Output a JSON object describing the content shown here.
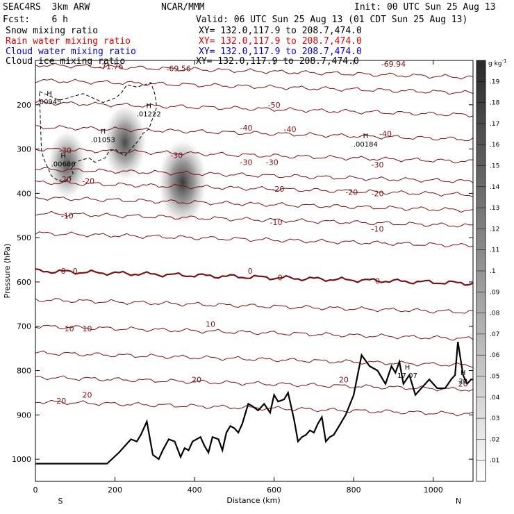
{
  "header": {
    "model": "SEAC4RS  3km ARW",
    "center": "NCAR/MMM",
    "init": "Init: 00 UTC Sun 25 Aug 13",
    "fcst": "Fcst:    6 h",
    "valid": "Valid: 06 UTC Sun 25 Aug 13 (01 CDT Sun 25 Aug 13)",
    "fields": [
      {
        "label": "Snow mixing ratio",
        "xy": "XY= 132.0,117.9 to 208.7,474.0",
        "color": "#000000"
      },
      {
        "label": "Rain water mixing ratio",
        "xy": "XY= 132.0,117.9 to 208.7,474.0",
        "color": "#e00000"
      },
      {
        "label": "Cloud water mixing ratio",
        "xy": "XY= 132.0,117.9 to 208.7,474.0",
        "color": "#0000cc"
      },
      {
        "label": "Cloud ice mixing ratio",
        "xy": "XY= 132.0,117.9 to 208.7,474.0",
        "color": "#000000"
      }
    ]
  },
  "colors": {
    "temperature": "#7a1010",
    "terrain": "#000000",
    "cloud_ice": "#000000"
  },
  "chart_data": {
    "type": "heatmap",
    "xlabel": "Distance (km)",
    "ylabel": "Pressure (hPa)",
    "xlim": [
      0,
      1100
    ],
    "ylim": [
      1050,
      100
    ],
    "x_ticks": [
      0,
      200,
      400,
      600,
      800,
      1000
    ],
    "x_tick_labels": [
      "0",
      "200",
      "400",
      "600",
      "800",
      "1000"
    ],
    "y_ticks": [
      200,
      300,
      400,
      500,
      600,
      700,
      800,
      900,
      1000
    ],
    "y_tick_labels": [
      "200",
      "300",
      "400",
      "500",
      "600",
      "700",
      "800",
      "900",
      "1000"
    ],
    "x_end_labels": [
      "S",
      "N"
    ],
    "colorbar": {
      "unit_label": "g kg",
      "unit_exponent": "-1",
      "tick_labels": [
        ".01",
        ".02",
        ".03",
        ".04",
        ".05",
        ".06",
        ".07",
        ".08",
        ".09",
        ".1",
        ".11",
        ".12",
        ".13",
        ".14",
        ".15",
        ".16",
        ".17",
        ".18",
        ".19"
      ]
    },
    "snow_maxima": [
      {
        "x": 370,
        "p": 375,
        "value": 0.19
      },
      {
        "x": 225,
        "p": 285,
        "value": 0.15
      },
      {
        "x": 80,
        "p": 335,
        "value": 0.12
      }
    ],
    "temperature_levels": [
      {
        "p": 110,
        "t": -71.76
      },
      {
        "p": 145,
        "t": -60
      },
      {
        "p": 195,
        "t": -50
      },
      {
        "p": 250,
        "t": -40
      },
      {
        "p": 300,
        "t": -30
      },
      {
        "p": 345,
        "t": -25
      },
      {
        "p": 375,
        "t": -20
      },
      {
        "p": 410,
        "t": -15
      },
      {
        "p": 445,
        "t": -10
      },
      {
        "p": 490,
        "t": -5
      },
      {
        "p": 575,
        "t": 0
      },
      {
        "p": 640,
        "t": 5
      },
      {
        "p": 700,
        "t": 10
      },
      {
        "p": 760,
        "t": 15
      },
      {
        "p": 815,
        "t": 20
      },
      {
        "p": 870,
        "t": 20
      }
    ],
    "contour_labels": [
      {
        "text": "-71.76",
        "x": 190,
        "p": 113
      },
      {
        "text": "-69.56",
        "x": 360,
        "p": 118
      },
      {
        "text": "-69.94",
        "x": 900,
        "p": 108
      },
      {
        "text": "-50",
        "x": 600,
        "p": 200
      },
      {
        "text": "-40",
        "x": 530,
        "p": 252
      },
      {
        "text": "-40",
        "x": 640,
        "p": 255
      },
      {
        "text": "-40",
        "x": 880,
        "p": 265
      },
      {
        "text": "-30",
        "x": 75,
        "p": 303
      },
      {
        "text": "-30",
        "x": 355,
        "p": 314
      },
      {
        "text": "-30",
        "x": 530,
        "p": 330
      },
      {
        "text": "-30",
        "x": 595,
        "p": 330
      },
      {
        "text": "-30",
        "x": 860,
        "p": 335
      },
      {
        "text": "-20",
        "x": 75,
        "p": 368
      },
      {
        "text": "-20",
        "x": 133,
        "p": 372
      },
      {
        "text": "-20",
        "x": 610,
        "p": 390
      },
      {
        "text": "-20",
        "x": 795,
        "p": 397
      },
      {
        "text": "-20",
        "x": 860,
        "p": 400
      },
      {
        "text": "-10",
        "x": 80,
        "p": 450
      },
      {
        "text": "-10",
        "x": 605,
        "p": 465
      },
      {
        "text": "-10",
        "x": 860,
        "p": 480
      },
      {
        "text": "0",
        "x": 70,
        "p": 575
      },
      {
        "text": "0",
        "x": 100,
        "p": 575
      },
      {
        "text": "0",
        "x": 540,
        "p": 575
      },
      {
        "text": "0",
        "x": 615,
        "p": 590
      },
      {
        "text": "0",
        "x": 860,
        "p": 598
      },
      {
        "text": "10",
        "x": 85,
        "p": 705
      },
      {
        "text": "10",
        "x": 130,
        "p": 705
      },
      {
        "text": "10",
        "x": 440,
        "p": 695
      },
      {
        "text": "20",
        "x": 405,
        "p": 820
      },
      {
        "text": "20",
        "x": 775,
        "p": 820
      },
      {
        "text": "20",
        "x": 130,
        "p": 855
      },
      {
        "text": "20",
        "x": 65,
        "p": 868
      },
      {
        "text": "20",
        "x": 1075,
        "p": 830
      }
    ],
    "max_labels": [
      {
        "mark": "H",
        "value": ".00945",
        "x": 35,
        "p": 185
      },
      {
        "mark": "H",
        "value": ".01222",
        "x": 285,
        "p": 212
      },
      {
        "mark": "H",
        "value": ".01053",
        "x": 170,
        "p": 270
      },
      {
        "mark": "H",
        "value": ".00184",
        "x": 830,
        "p": 280
      },
      {
        "mark": "H",
        "value": ".00686",
        "x": 70,
        "p": 325
      },
      {
        "mark": "H",
        "value": "17.07",
        "x": 935,
        "p": 802
      },
      {
        "mark": "H",
        "value": "20",
        "x": 1075,
        "p": 815
      }
    ],
    "terrain": {
      "x": [
        0,
        180,
        210,
        240,
        255,
        265,
        280,
        295,
        310,
        320,
        335,
        350,
        365,
        375,
        385,
        395,
        405,
        415,
        425,
        435,
        445,
        460,
        470,
        480,
        490,
        500,
        510,
        520,
        535,
        545,
        560,
        575,
        590,
        600,
        610,
        625,
        635,
        650,
        660,
        670,
        680,
        690,
        700,
        710,
        720,
        730,
        740,
        750,
        760,
        780,
        800,
        820,
        840,
        860,
        880,
        895,
        905,
        915,
        925,
        940,
        955,
        970,
        990,
        1010,
        1030,
        1045,
        1055,
        1062,
        1068,
        1075,
        1085,
        1095,
        1100
      ],
      "p": [
        1010,
        1010,
        985,
        955,
        960,
        945,
        915,
        990,
        1000,
        980,
        955,
        960,
        995,
        975,
        980,
        960,
        955,
        950,
        970,
        985,
        950,
        955,
        980,
        940,
        925,
        930,
        940,
        920,
        875,
        880,
        890,
        875,
        895,
        855,
        870,
        865,
        850,
        910,
        960,
        950,
        945,
        935,
        940,
        920,
        905,
        960,
        950,
        945,
        930,
        900,
        855,
        765,
        790,
        800,
        830,
        790,
        805,
        780,
        830,
        810,
        855,
        840,
        820,
        840,
        840,
        820,
        810,
        735,
        770,
        810,
        830,
        820,
        820
      ]
    },
    "cloud_ice_outline": {
      "x": [
        10,
        60,
        120,
        170,
        200,
        215,
        230,
        255,
        275,
        290,
        300,
        305,
        295,
        285,
        270,
        260,
        240,
        225,
        215,
        200,
        185,
        175,
        150,
        135,
        115,
        100,
        90,
        95,
        85,
        70,
        55,
        40,
        30,
        20,
        15,
        10
      ],
      "p": [
        170,
        190,
        175,
        195,
        185,
        175,
        155,
        160,
        155,
        150,
        175,
        205,
        230,
        255,
        265,
        280,
        300,
        315,
        310,
        300,
        305,
        320,
        330,
        320,
        325,
        330,
        345,
        355,
        365,
        375,
        370,
        360,
        340,
        320,
        300,
        170
      ]
    }
  }
}
